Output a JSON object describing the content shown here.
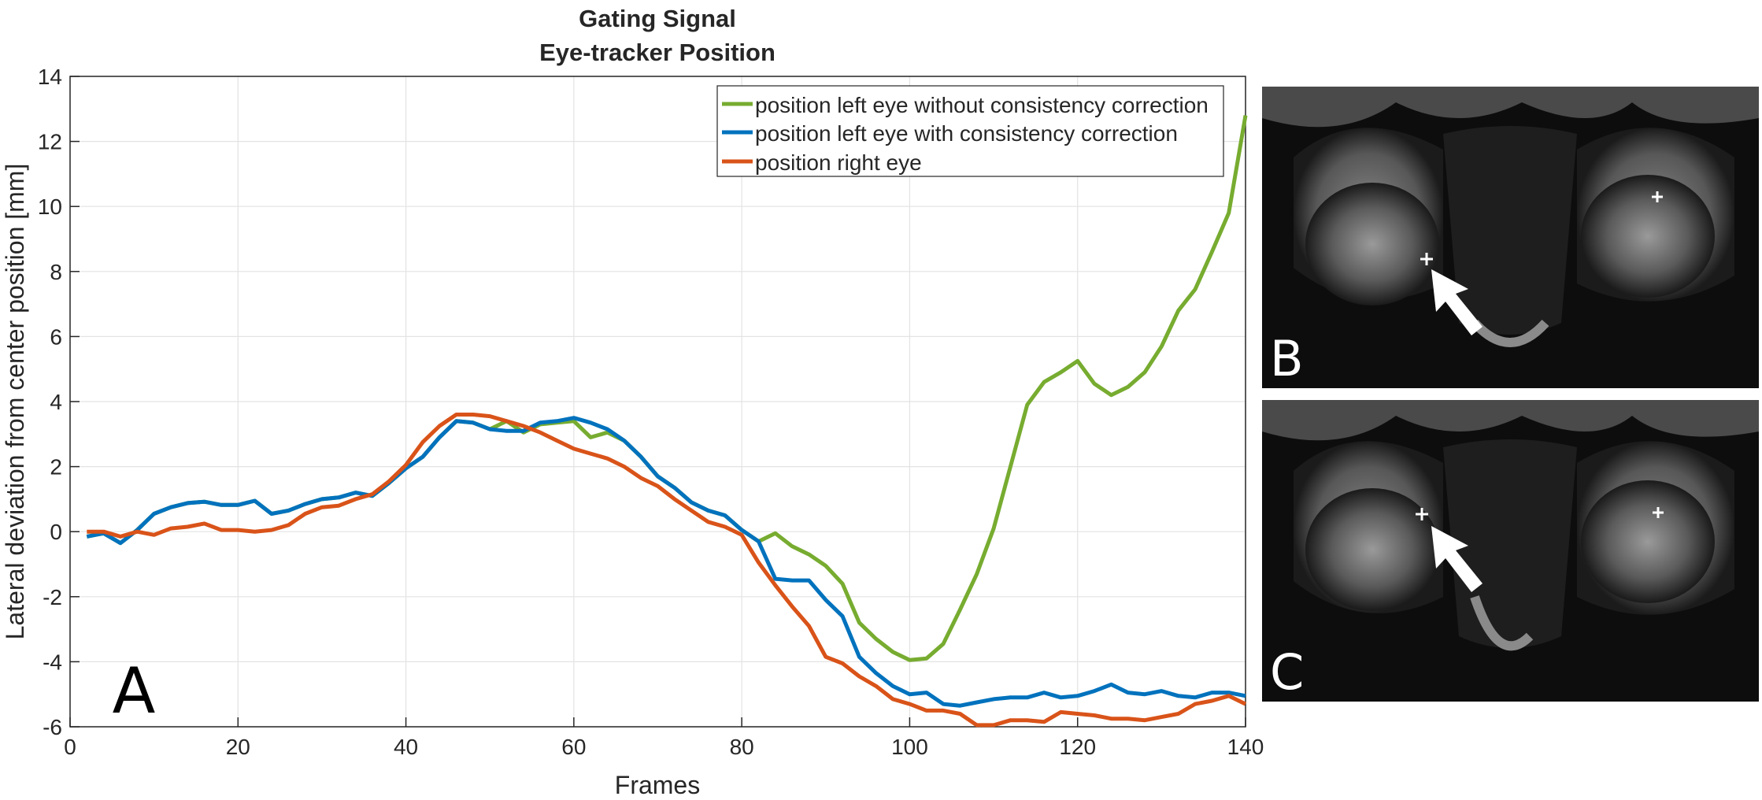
{
  "chart_data": {
    "type": "line",
    "title": [
      "Gating Signal",
      "Eye-tracker Position"
    ],
    "xlabel": "Frames",
    "ylabel": "Lateral deviation from center position [mm]",
    "xlim": [
      0,
      140
    ],
    "ylim": [
      -6,
      14
    ],
    "xticks": [
      0,
      20,
      40,
      60,
      80,
      100,
      120,
      140
    ],
    "yticks": [
      -6,
      -4,
      -2,
      0,
      2,
      4,
      6,
      8,
      10,
      12,
      14
    ],
    "grid": true,
    "legend_position": "top-right",
    "panel_label": "A",
    "series": [
      {
        "name": "position left eye without consistency correction",
        "color": "#77AC30",
        "x": [
          2,
          4,
          6,
          8,
          10,
          12,
          14,
          16,
          18,
          20,
          22,
          24,
          26,
          28,
          30,
          32,
          34,
          36,
          38,
          40,
          42,
          44,
          46,
          48,
          50,
          52,
          54,
          56,
          58,
          60,
          62,
          64,
          66,
          68,
          70,
          72,
          74,
          76,
          78,
          80,
          82,
          84,
          86,
          88,
          90,
          92,
          94,
          96,
          98,
          100,
          102,
          104,
          106,
          108,
          110,
          112,
          114,
          116,
          118,
          120,
          122,
          124,
          126,
          128,
          130,
          132,
          134,
          136,
          138,
          140
        ],
        "values": [
          -0.15,
          -0.05,
          -0.35,
          0.05,
          0.55,
          0.75,
          0.88,
          0.92,
          0.82,
          0.82,
          0.95,
          0.55,
          0.65,
          0.85,
          1.0,
          1.05,
          1.2,
          1.1,
          1.5,
          1.95,
          2.3,
          2.9,
          3.4,
          3.35,
          3.15,
          3.4,
          3.05,
          3.3,
          3.35,
          3.4,
          2.9,
          3.05,
          2.8,
          2.3,
          1.7,
          1.35,
          0.9,
          0.65,
          0.5,
          0.05,
          -0.3,
          -0.05,
          -0.45,
          -0.7,
          -1.05,
          -1.6,
          -2.8,
          -3.3,
          -3.7,
          -3.95,
          -3.9,
          -3.45,
          -2.4,
          -1.3,
          0.1,
          2.0,
          3.9,
          4.6,
          4.9,
          5.25,
          4.55,
          4.2,
          4.45,
          4.9,
          5.7,
          6.8,
          7.45,
          8.6,
          9.8,
          12.8
        ]
      },
      {
        "name": "position left eye with consistency correction",
        "color": "#0072BD",
        "x": [
          2,
          4,
          6,
          8,
          10,
          12,
          14,
          16,
          18,
          20,
          22,
          24,
          26,
          28,
          30,
          32,
          34,
          36,
          38,
          40,
          42,
          44,
          46,
          48,
          50,
          52,
          54,
          56,
          58,
          60,
          62,
          64,
          66,
          68,
          70,
          72,
          74,
          76,
          78,
          80,
          82,
          84,
          86,
          88,
          90,
          92,
          94,
          96,
          98,
          100,
          102,
          104,
          106,
          108,
          110,
          112,
          114,
          116,
          118,
          120,
          122,
          124,
          126,
          128,
          130,
          132,
          134,
          136,
          138,
          140
        ],
        "values": [
          -0.15,
          -0.05,
          -0.35,
          0.05,
          0.55,
          0.75,
          0.88,
          0.92,
          0.82,
          0.82,
          0.95,
          0.55,
          0.65,
          0.85,
          1.0,
          1.05,
          1.2,
          1.1,
          1.5,
          1.95,
          2.3,
          2.9,
          3.4,
          3.35,
          3.15,
          3.1,
          3.1,
          3.35,
          3.4,
          3.5,
          3.35,
          3.15,
          2.8,
          2.3,
          1.7,
          1.35,
          0.9,
          0.65,
          0.5,
          0.05,
          -0.3,
          -1.45,
          -1.5,
          -1.5,
          -2.1,
          -2.6,
          -3.85,
          -4.35,
          -4.75,
          -5.0,
          -4.95,
          -5.3,
          -5.35,
          -5.25,
          -5.15,
          -5.1,
          -5.1,
          -4.95,
          -5.1,
          -5.05,
          -4.9,
          -4.7,
          -4.95,
          -5.0,
          -4.9,
          -5.05,
          -5.1,
          -4.95,
          -4.95,
          -5.05
        ]
      },
      {
        "name": "position right eye",
        "color": "#D95319",
        "x": [
          2,
          4,
          6,
          8,
          10,
          12,
          14,
          16,
          18,
          20,
          22,
          24,
          26,
          28,
          30,
          32,
          34,
          36,
          38,
          40,
          42,
          44,
          46,
          48,
          50,
          52,
          54,
          56,
          58,
          60,
          62,
          64,
          66,
          68,
          70,
          72,
          74,
          76,
          78,
          80,
          82,
          84,
          86,
          88,
          90,
          92,
          94,
          96,
          98,
          100,
          102,
          104,
          106,
          108,
          110,
          112,
          114,
          116,
          118,
          120,
          122,
          124,
          126,
          128,
          130,
          132,
          134,
          136,
          138,
          140
        ],
        "values": [
          0.0,
          0.0,
          -0.15,
          0.0,
          -0.1,
          0.1,
          0.15,
          0.25,
          0.05,
          0.05,
          0.0,
          0.05,
          0.2,
          0.55,
          0.75,
          0.8,
          1.0,
          1.15,
          1.55,
          2.05,
          2.75,
          3.25,
          3.6,
          3.6,
          3.55,
          3.4,
          3.25,
          3.05,
          2.8,
          2.55,
          2.4,
          2.25,
          2.0,
          1.65,
          1.4,
          1.0,
          0.65,
          0.3,
          0.15,
          -0.1,
          -0.95,
          -1.65,
          -2.3,
          -2.9,
          -3.85,
          -4.05,
          -4.45,
          -4.75,
          -5.15,
          -5.3,
          -5.5,
          -5.5,
          -5.6,
          -5.95,
          -5.95,
          -5.8,
          -5.8,
          -5.85,
          -5.55,
          -5.6,
          -5.65,
          -5.75,
          -5.75,
          -5.8,
          -5.7,
          -5.6,
          -5.3,
          -5.2,
          -5.05,
          -5.3
        ]
      }
    ]
  },
  "panels": [
    {
      "label": "B"
    },
    {
      "label": "C"
    }
  ]
}
